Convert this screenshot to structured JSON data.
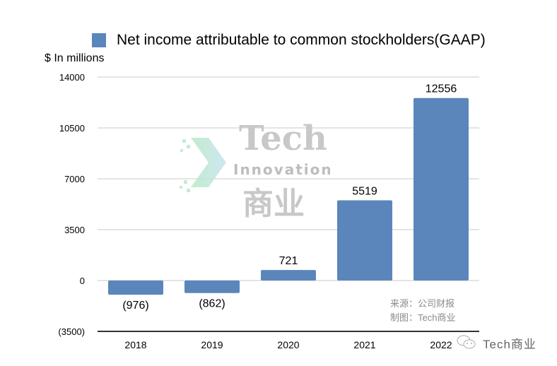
{
  "chart_data": {
    "type": "bar",
    "title": "",
    "legend": [
      "Net income attributable to common stockholders(GAAP)"
    ],
    "legend_placement": "top",
    "ylabel": "$ In millions",
    "xlabel": "",
    "categories": [
      "2018",
      "2019",
      "2020",
      "2021",
      "2022"
    ],
    "values": [
      -976,
      -862,
      721,
      5519,
      12556
    ],
    "data_labels": [
      "(976)",
      "(862)",
      "721",
      "5519",
      "12556"
    ],
    "ylim": [
      -3500,
      14000
    ],
    "yticks": [
      -3500,
      0,
      3500,
      7000,
      10500,
      14000
    ],
    "ytick_labels": [
      "(3500)",
      "0",
      "3500",
      "7000",
      "10500",
      "14000"
    ],
    "grid": true,
    "bar_color": "#5b86bb"
  },
  "source": {
    "line1": "来源：公司财报",
    "line2": "制图：Tech商业"
  },
  "watermark": {
    "tech": "Tech",
    "innovation": "Innovation",
    "cn": "商业",
    "account": "Tech商业"
  }
}
